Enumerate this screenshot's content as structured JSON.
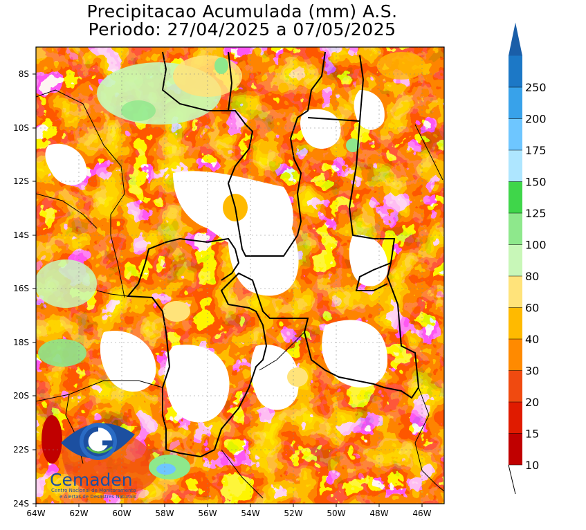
{
  "title": {
    "line1": "Precipitacao Acumulada (mm) A.S.",
    "line2": "Periodo: 27/04/2025 a 07/05/2025"
  },
  "chart_data": {
    "type": "heatmap",
    "title": "Precipitacao Acumulada (mm) A.S.",
    "subtitle": "Periodo: 27/04/2025 a 07/05/2025",
    "x_ticks": [
      "64W",
      "62W",
      "60W",
      "58W",
      "56W",
      "54W",
      "52W",
      "50W",
      "48W",
      "46W"
    ],
    "y_ticks": [
      "8S",
      "10S",
      "12S",
      "14S",
      "16S",
      "18S",
      "20S",
      "22S",
      "24S"
    ],
    "xlim_lon": [
      -64,
      -45
    ],
    "ylim_lat": [
      -24,
      -7.3
    ],
    "grid": true,
    "colorbar": {
      "levels": [
        "10",
        "15",
        "20",
        "30",
        "40",
        "60",
        "80",
        "100",
        "125",
        "150",
        "175",
        "200",
        "250"
      ],
      "colors": [
        "#c00000",
        "#e01b00",
        "#f04a10",
        "#ff8a00",
        "#ffba00",
        "#ffe37a",
        "#c8f7b8",
        "#8ee88c",
        "#3fd64a",
        "#aee6ff",
        "#6ec6ff",
        "#38a2ea",
        "#1c78c6",
        "#1a5ea8"
      ]
    }
  },
  "logo": {
    "name": "Cemaden",
    "subtitle1": "Centro Nacional de Monitoramento",
    "subtitle2": "e Alertas de Desastres Naturais"
  }
}
